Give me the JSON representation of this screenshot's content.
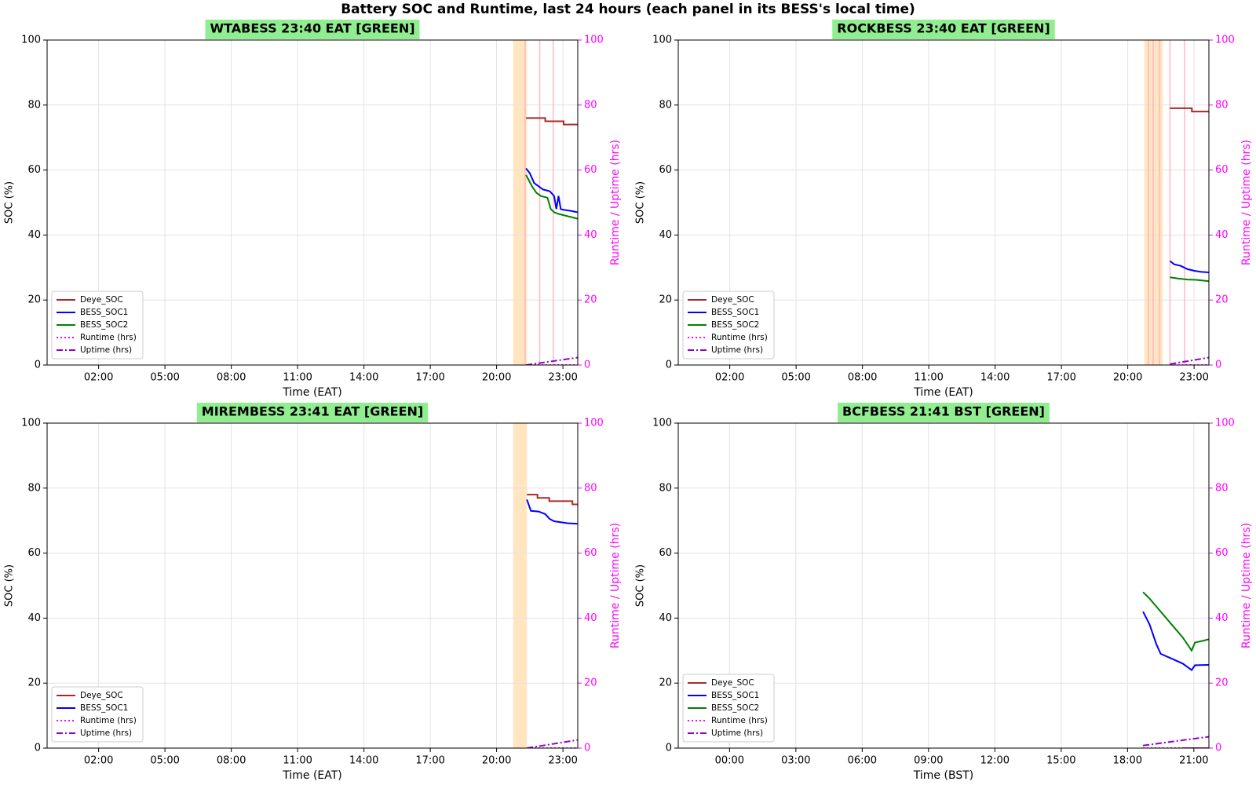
{
  "title": "Battery SOC and Runtime, last 24 hours (each panel in its BESS's local time)",
  "chart_data": [
    {
      "type": "line",
      "title": "WTABESS  23:40 EAT  [GREEN]",
      "title_bg": "#90ee90",
      "xlabel": "Time (EAT)",
      "ylabel": "SOC (%)",
      "y2label": "Runtime / Uptime (hrs)",
      "y2color": "#ff00ff",
      "xlim": [
        -0.33,
        23.67
      ],
      "xticks": [
        {
          "value": 2,
          "label": "02:00"
        },
        {
          "value": 5,
          "label": "05:00"
        },
        {
          "value": 8,
          "label": "08:00"
        },
        {
          "value": 11,
          "label": "11:00"
        },
        {
          "value": 14,
          "label": "14:00"
        },
        {
          "value": 17,
          "label": "17:00"
        },
        {
          "value": 20,
          "label": "20:00"
        },
        {
          "value": 23,
          "label": "23:00"
        }
      ],
      "ylim": [
        0,
        100
      ],
      "yticks": [
        0,
        20,
        40,
        60,
        80,
        100
      ],
      "y2lim": [
        0,
        100
      ],
      "y2ticks": [
        0,
        20,
        40,
        60,
        80,
        100
      ],
      "grid": true,
      "legend": "lower left",
      "spans": [
        [
          20.75,
          21.37
        ]
      ],
      "span_color": "#ffe0b2",
      "event_lines": [
        21.29,
        21.95,
        22.56
      ],
      "event_color": "#ffb6c1",
      "series": [
        {
          "name": "Deye_SOC",
          "color": "#a52a2a",
          "style": "solid",
          "x": [
            21.33,
            22.2,
            22.2,
            23.03,
            23.03,
            23.67
          ],
          "values": [
            76,
            76,
            75,
            75,
            74,
            74
          ]
        },
        {
          "name": "BESS_SOC1",
          "color": "#0000ff",
          "style": "solid",
          "x": [
            21.33,
            21.5,
            21.7,
            21.9,
            22.1,
            22.4,
            22.6,
            22.7,
            22.8,
            22.9,
            23.0,
            23.3,
            23.67
          ],
          "values": [
            60.5,
            59,
            56,
            55,
            54,
            53.5,
            52,
            48,
            52,
            48,
            47.8,
            47.5,
            47
          ]
        },
        {
          "name": "BESS_SOC2",
          "color": "#008000",
          "style": "solid",
          "x": [
            21.33,
            21.6,
            21.8,
            22.0,
            22.3,
            22.45,
            22.6,
            22.8,
            23.1,
            23.67
          ],
          "values": [
            58.5,
            55,
            53,
            52,
            51.5,
            48,
            47,
            46.5,
            46,
            45
          ]
        },
        {
          "name": "Runtime (hrs)",
          "color": "#ff00ff",
          "style": "dotted",
          "axis": "y2",
          "x": [
            21.33,
            23.67
          ],
          "values": [
            0,
            0
          ]
        },
        {
          "name": "Uptime (hrs)",
          "color": "#9400d3",
          "style": "dashdot",
          "axis": "y2",
          "x": [
            21.33,
            23.67
          ],
          "values": [
            0,
            2.3
          ]
        }
      ]
    },
    {
      "type": "line",
      "title": "ROCKBESS  23:40 EAT  [GREEN]",
      "title_bg": "#90ee90",
      "xlabel": "Time (EAT)",
      "ylabel": "SOC (%)",
      "y2label": "Runtime / Uptime (hrs)",
      "y2color": "#ff00ff",
      "xlim": [
        -0.33,
        23.67
      ],
      "xticks": [
        {
          "value": 2,
          "label": "02:00"
        },
        {
          "value": 5,
          "label": "05:00"
        },
        {
          "value": 8,
          "label": "08:00"
        },
        {
          "value": 11,
          "label": "11:00"
        },
        {
          "value": 14,
          "label": "14:00"
        },
        {
          "value": 17,
          "label": "17:00"
        },
        {
          "value": 20,
          "label": "20:00"
        },
        {
          "value": 23,
          "label": "23:00"
        }
      ],
      "ylim": [
        0,
        100
      ],
      "yticks": [
        0,
        20,
        40,
        60,
        80,
        100
      ],
      "y2lim": [
        0,
        100
      ],
      "y2ticks": [
        0,
        20,
        40,
        60,
        80,
        100
      ],
      "grid": true,
      "legend": "lower left",
      "spans": [
        [
          20.75,
          21.58
        ]
      ],
      "span_color": "#ffe0b2",
      "event_lines": [
        20.93,
        21.15,
        21.44,
        21.91,
        22.57
      ],
      "event_color": "#ffb6c1",
      "series": [
        {
          "name": "Deye_SOC",
          "color": "#a52a2a",
          "style": "solid",
          "x": [
            21.91,
            22.9,
            22.9,
            23.67
          ],
          "values": [
            79,
            79,
            78,
            78
          ]
        },
        {
          "name": "BESS_SOC1",
          "color": "#0000ff",
          "style": "solid",
          "x": [
            21.91,
            22.1,
            22.4,
            22.7,
            23.0,
            23.3,
            23.67
          ],
          "values": [
            32,
            31,
            30.5,
            29.5,
            29,
            28.7,
            28.5
          ]
        },
        {
          "name": "BESS_SOC2",
          "color": "#008000",
          "style": "solid",
          "x": [
            21.91,
            22.3,
            22.7,
            23.1,
            23.4,
            23.67
          ],
          "values": [
            27,
            26.6,
            26.3,
            26.2,
            26,
            25.8
          ]
        },
        {
          "name": "Runtime (hrs)",
          "color": "#ff00ff",
          "style": "dotted",
          "axis": "y2",
          "x": [
            21.91,
            23.67
          ],
          "values": [
            0,
            0
          ]
        },
        {
          "name": "Uptime (hrs)",
          "color": "#9400d3",
          "style": "dashdot",
          "axis": "y2",
          "x": [
            21.91,
            23.67
          ],
          "values": [
            0.3,
            2.3
          ]
        }
      ]
    },
    {
      "type": "line",
      "title": "MIREMBESS  23:41 EAT  [GREEN]",
      "title_bg": "#90ee90",
      "xlabel": "Time (EAT)",
      "ylabel": "SOC (%)",
      "y2label": "Runtime / Uptime (hrs)",
      "y2color": "#ff00ff",
      "xlim": [
        -0.33,
        23.67
      ],
      "xticks": [
        {
          "value": 2,
          "label": "02:00"
        },
        {
          "value": 5,
          "label": "05:00"
        },
        {
          "value": 8,
          "label": "08:00"
        },
        {
          "value": 11,
          "label": "11:00"
        },
        {
          "value": 14,
          "label": "14:00"
        },
        {
          "value": 17,
          "label": "17:00"
        },
        {
          "value": 20,
          "label": "20:00"
        },
        {
          "value": 23,
          "label": "23:00"
        }
      ],
      "ylim": [
        0,
        100
      ],
      "yticks": [
        0,
        20,
        40,
        60,
        80,
        100
      ],
      "y2lim": [
        0,
        100
      ],
      "y2ticks": [
        0,
        20,
        40,
        60,
        80,
        100
      ],
      "grid": true,
      "legend": "lower left",
      "spans": [
        [
          20.75,
          21.37
        ]
      ],
      "span_color": "#ffe0b2",
      "series": [
        {
          "name": "Deye_SOC",
          "color": "#a52a2a",
          "style": "solid",
          "x": [
            21.37,
            21.85,
            21.85,
            22.38,
            22.38,
            23.43,
            23.43,
            23.67
          ],
          "values": [
            78,
            78,
            77,
            77,
            76,
            76,
            75,
            75
          ]
        },
        {
          "name": "BESS_SOC1",
          "color": "#0000ff",
          "style": "solid",
          "x": [
            21.37,
            21.55,
            21.9,
            22.2,
            22.4,
            22.6,
            22.9,
            23.2,
            23.67
          ],
          "values": [
            76.5,
            73,
            72.8,
            72,
            70.5,
            69.8,
            69.5,
            69.2,
            69
          ]
        },
        {
          "name": "Runtime (hrs)",
          "color": "#ff00ff",
          "style": "dotted",
          "axis": "y2",
          "x": [
            21.37,
            23.67
          ],
          "values": [
            0,
            0
          ]
        },
        {
          "name": "Uptime (hrs)",
          "color": "#9400d3",
          "style": "dashdot",
          "axis": "y2",
          "x": [
            21.37,
            23.67
          ],
          "values": [
            0,
            2.5
          ]
        }
      ]
    },
    {
      "type": "line",
      "title": "BCFBESS  21:41 BST  [GREEN]",
      "title_bg": "#90ee90",
      "xlabel": "Time (BST)",
      "ylabel": "SOC (%)",
      "y2label": "Runtime / Uptime (hrs)",
      "y2color": "#ff00ff",
      "xlim": [
        -2.32,
        21.68
      ],
      "xticks": [
        {
          "value": 0,
          "label": "00:00"
        },
        {
          "value": 3,
          "label": "03:00"
        },
        {
          "value": 6,
          "label": "06:00"
        },
        {
          "value": 9,
          "label": "09:00"
        },
        {
          "value": 12,
          "label": "12:00"
        },
        {
          "value": 15,
          "label": "15:00"
        },
        {
          "value": 18,
          "label": "18:00"
        },
        {
          "value": 21,
          "label": "21:00"
        }
      ],
      "ylim": [
        0,
        100
      ],
      "yticks": [
        0,
        20,
        40,
        60,
        80,
        100
      ],
      "y2lim": [
        0,
        100
      ],
      "y2ticks": [
        0,
        20,
        40,
        60,
        80,
        100
      ],
      "grid": true,
      "legend": "lower left",
      "series": [
        {
          "name": "Deye_SOC",
          "color": "#a52a2a",
          "style": "solid",
          "x": [
            20.46,
            21.68
          ],
          "values": [
            0,
            0
          ]
        },
        {
          "name": "BESS_SOC1",
          "color": "#0000ff",
          "style": "solid",
          "x": [
            18.7,
            19.0,
            19.3,
            19.5,
            20.0,
            20.5,
            20.9,
            21.05,
            21.68
          ],
          "values": [
            42,
            38,
            32,
            29,
            27.5,
            26,
            24,
            25.5,
            25.6
          ]
        },
        {
          "name": "BESS_SOC2",
          "color": "#008000",
          "style": "solid",
          "x": [
            18.7,
            19.0,
            19.5,
            20.0,
            20.5,
            20.9,
            21.05,
            21.4,
            21.68
          ],
          "values": [
            48,
            46,
            42,
            38,
            34,
            30,
            32.5,
            33,
            33.5
          ]
        },
        {
          "name": "Runtime (hrs)",
          "color": "#ff00ff",
          "style": "dotted",
          "axis": "y2",
          "x": [
            18.7,
            21.68
          ],
          "values": [
            0,
            0
          ]
        },
        {
          "name": "Uptime (hrs)",
          "color": "#9400d3",
          "style": "dashdot",
          "axis": "y2",
          "x": [
            18.7,
            21.68
          ],
          "values": [
            0.8,
            3.5
          ]
        }
      ]
    }
  ]
}
